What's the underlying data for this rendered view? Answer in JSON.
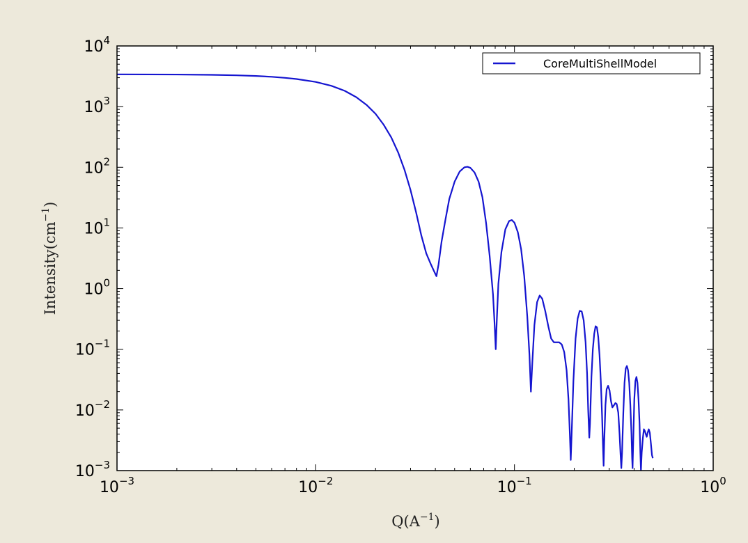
{
  "colors": {
    "background": "#ede9db",
    "plot_area": "#ffffff",
    "series_line": "#1515d0",
    "axes": "#000000"
  },
  "chart_data": {
    "type": "line",
    "title": "",
    "xlabel_base": "Q(A",
    "xlabel_exp": "−1",
    "xlabel_end": ")",
    "ylabel_base": "Intensity(cm",
    "ylabel_exp": "−1",
    "ylabel_end": ")",
    "x_scale": "log",
    "y_scale": "log",
    "xlim": [
      0.001,
      1
    ],
    "ylim": [
      0.001,
      10000
    ],
    "x_ticks": [
      {
        "value": 0.001,
        "base": "10",
        "exp": "−3"
      },
      {
        "value": 0.01,
        "base": "10",
        "exp": "−2"
      },
      {
        "value": 0.1,
        "base": "10",
        "exp": "−1"
      },
      {
        "value": 1,
        "base": "10",
        "exp": "0"
      }
    ],
    "y_ticks": [
      {
        "value": 0.001,
        "base": "10",
        "exp": "−3"
      },
      {
        "value": 0.01,
        "base": "10",
        "exp": "−2"
      },
      {
        "value": 0.1,
        "base": "10",
        "exp": "−1"
      },
      {
        "value": 1,
        "base": "10",
        "exp": "0"
      },
      {
        "value": 10,
        "base": "10",
        "exp": "1"
      },
      {
        "value": 100,
        "base": "10",
        "exp": "2"
      },
      {
        "value": 1000,
        "base": "10",
        "exp": "3"
      },
      {
        "value": 10000,
        "base": "10",
        "exp": "4"
      }
    ],
    "grid": false,
    "legend_position": "top-right",
    "series": [
      {
        "name": "CoreMultiShellModel",
        "color": "#1515d0",
        "points": [
          [
            0.001,
            3400
          ],
          [
            0.002,
            3380
          ],
          [
            0.003,
            3340
          ],
          [
            0.004,
            3280
          ],
          [
            0.005,
            3200
          ],
          [
            0.006,
            3100
          ],
          [
            0.007,
            2980
          ],
          [
            0.008,
            2850
          ],
          [
            0.01,
            2550
          ],
          [
            0.012,
            2200
          ],
          [
            0.014,
            1820
          ],
          [
            0.016,
            1430
          ],
          [
            0.018,
            1070
          ],
          [
            0.02,
            760
          ],
          [
            0.022,
            500
          ],
          [
            0.024,
            310
          ],
          [
            0.026,
            175
          ],
          [
            0.028,
            90
          ],
          [
            0.03,
            42
          ],
          [
            0.032,
            18
          ],
          [
            0.034,
            7.5
          ],
          [
            0.036,
            3.8
          ],
          [
            0.038,
            2.5
          ],
          [
            0.0395,
            1.9
          ],
          [
            0.0405,
            1.6
          ],
          [
            0.0415,
            2.5
          ],
          [
            0.043,
            6
          ],
          [
            0.045,
            14
          ],
          [
            0.047,
            30
          ],
          [
            0.05,
            58
          ],
          [
            0.053,
            85
          ],
          [
            0.056,
            100
          ],
          [
            0.058,
            102
          ],
          [
            0.06,
            98
          ],
          [
            0.063,
            82
          ],
          [
            0.066,
            58
          ],
          [
            0.069,
            32
          ],
          [
            0.072,
            12
          ],
          [
            0.075,
            3.5
          ],
          [
            0.078,
            0.8
          ],
          [
            0.0795,
            0.25
          ],
          [
            0.0805,
            0.1
          ],
          [
            0.0815,
            0.3
          ],
          [
            0.083,
            1.2
          ],
          [
            0.086,
            4
          ],
          [
            0.09,
            9.5
          ],
          [
            0.094,
            13
          ],
          [
            0.097,
            13.5
          ],
          [
            0.1,
            12.2
          ],
          [
            0.104,
            8.5
          ],
          [
            0.108,
            4.5
          ],
          [
            0.112,
            1.6
          ],
          [
            0.116,
            0.35
          ],
          [
            0.119,
            0.08
          ],
          [
            0.121,
            0.02
          ],
          [
            0.123,
            0.06
          ],
          [
            0.126,
            0.25
          ],
          [
            0.13,
            0.6
          ],
          [
            0.134,
            0.77
          ],
          [
            0.138,
            0.68
          ],
          [
            0.143,
            0.42
          ],
          [
            0.148,
            0.24
          ],
          [
            0.153,
            0.15
          ],
          [
            0.158,
            0.13
          ],
          [
            0.163,
            0.13
          ],
          [
            0.168,
            0.13
          ],
          [
            0.173,
            0.12
          ],
          [
            0.178,
            0.09
          ],
          [
            0.183,
            0.045
          ],
          [
            0.187,
            0.015
          ],
          [
            0.19,
            0.004
          ],
          [
            0.192,
            0.0015
          ],
          [
            0.194,
            0.004
          ],
          [
            0.198,
            0.03
          ],
          [
            0.203,
            0.15
          ],
          [
            0.208,
            0.32
          ],
          [
            0.213,
            0.43
          ],
          [
            0.218,
            0.42
          ],
          [
            0.223,
            0.3
          ],
          [
            0.228,
            0.13
          ],
          [
            0.232,
            0.04
          ],
          [
            0.235,
            0.01
          ],
          [
            0.238,
            0.0035
          ],
          [
            0.24,
            0.006
          ],
          [
            0.244,
            0.035
          ],
          [
            0.248,
            0.1
          ],
          [
            0.252,
            0.18
          ],
          [
            0.256,
            0.24
          ],
          [
            0.26,
            0.23
          ],
          [
            0.264,
            0.16
          ],
          [
            0.268,
            0.08
          ],
          [
            0.272,
            0.03
          ],
          [
            0.276,
            0.008
          ],
          [
            0.279,
            0.0025
          ],
          [
            0.281,
            0.0012
          ],
          [
            0.283,
            0.003
          ],
          [
            0.287,
            0.012
          ],
          [
            0.291,
            0.022
          ],
          [
            0.296,
            0.025
          ],
          [
            0.301,
            0.021
          ],
          [
            0.306,
            0.014
          ],
          [
            0.311,
            0.011
          ],
          [
            0.317,
            0.012
          ],
          [
            0.322,
            0.013
          ],
          [
            0.327,
            0.0125
          ],
          [
            0.333,
            0.009
          ],
          [
            0.338,
            0.004
          ],
          [
            0.342,
            0.0018
          ],
          [
            0.345,
            0.0011
          ],
          [
            0.348,
            0.002
          ],
          [
            0.353,
            0.009
          ],
          [
            0.358,
            0.028
          ],
          [
            0.363,
            0.048
          ],
          [
            0.368,
            0.053
          ],
          [
            0.373,
            0.045
          ],
          [
            0.378,
            0.028
          ],
          [
            0.383,
            0.012
          ],
          [
            0.388,
            0.004
          ],
          [
            0.391,
            0.0016
          ],
          [
            0.393,
            0.0011
          ],
          [
            0.396,
            0.003
          ],
          [
            0.401,
            0.015
          ],
          [
            0.406,
            0.03
          ],
          [
            0.411,
            0.035
          ],
          [
            0.416,
            0.028
          ],
          [
            0.421,
            0.015
          ],
          [
            0.426,
            0.006
          ],
          [
            0.43,
            0.002
          ],
          [
            0.433,
            0.001
          ],
          [
            0.437,
            0.002
          ],
          [
            0.443,
            0.0035
          ],
          [
            0.448,
            0.0048
          ],
          [
            0.453,
            0.0045
          ],
          [
            0.458,
            0.004
          ],
          [
            0.463,
            0.0036
          ],
          [
            0.468,
            0.0042
          ],
          [
            0.474,
            0.0048
          ],
          [
            0.48,
            0.0042
          ],
          [
            0.486,
            0.0028
          ],
          [
            0.492,
            0.0018
          ],
          [
            0.497,
            0.0016
          ]
        ]
      }
    ]
  }
}
